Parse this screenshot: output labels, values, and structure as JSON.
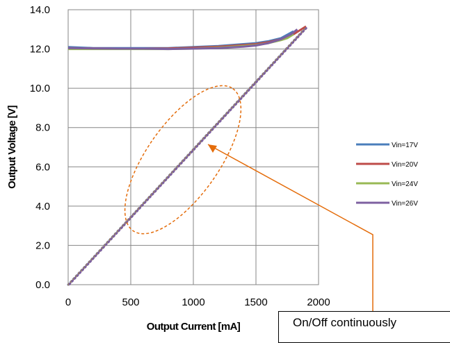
{
  "chart_data": {
    "type": "line",
    "xlabel": "Output Current [mA]",
    "ylabel": "Output Voltage [V]",
    "xlim": [
      0,
      2000
    ],
    "ylim": [
      0,
      14
    ],
    "xticks": [
      "0",
      "500",
      "1000",
      "1500",
      "2000"
    ],
    "yticks": [
      "0.0",
      "2.0",
      "4.0",
      "6.0",
      "8.0",
      "10.0",
      "12.0",
      "14.0"
    ],
    "grid": true,
    "legend_position": "right",
    "series": [
      {
        "name": "Vin=17V",
        "color": "#4a7ebb",
        "x": [
          0,
          200,
          400,
          600,
          800,
          1000,
          1200,
          1400,
          1500,
          1600,
          1700,
          1800
        ],
        "y": [
          12.1,
          12.05,
          12.05,
          12.05,
          12.05,
          12.1,
          12.15,
          12.25,
          12.3,
          12.4,
          12.55,
          12.9
        ]
      },
      {
        "name": "Vin=20V",
        "color": "#be4b48",
        "x": [
          0,
          200,
          400,
          600,
          800,
          1000,
          1200,
          1400,
          1500,
          1600,
          1700,
          1800,
          1900
        ],
        "y": [
          12.05,
          12.03,
          12.02,
          12.02,
          12.03,
          12.07,
          12.12,
          12.2,
          12.25,
          12.35,
          12.5,
          12.75,
          13.15
        ]
      },
      {
        "name": "Vin=24V",
        "color": "#98b954",
        "x": [
          0,
          200,
          400,
          600,
          800,
          1000,
          1200,
          1400,
          1500,
          1600,
          1700,
          1750,
          1800
        ],
        "y": [
          12.0,
          12.0,
          12.0,
          12.0,
          12.0,
          12.02,
          12.07,
          12.15,
          12.2,
          12.3,
          12.45,
          12.55,
          12.75
        ]
      },
      {
        "name": "Vin=26V",
        "color": "#7d60a0",
        "x": [
          0,
          200,
          400,
          600,
          800,
          1000,
          1200,
          1400,
          1500,
          1600,
          1700,
          1780,
          1830
        ],
        "y": [
          12.05,
          12.03,
          12.02,
          12.02,
          12.0,
          12.02,
          12.05,
          12.12,
          12.18,
          12.3,
          12.5,
          12.75,
          13.0
        ]
      }
    ],
    "linear_segment": {
      "x": [
        0,
        1900
      ],
      "y": [
        0,
        13.1
      ]
    },
    "annotation": {
      "text": "On/Off continuously",
      "color": "#e46c0a"
    }
  }
}
